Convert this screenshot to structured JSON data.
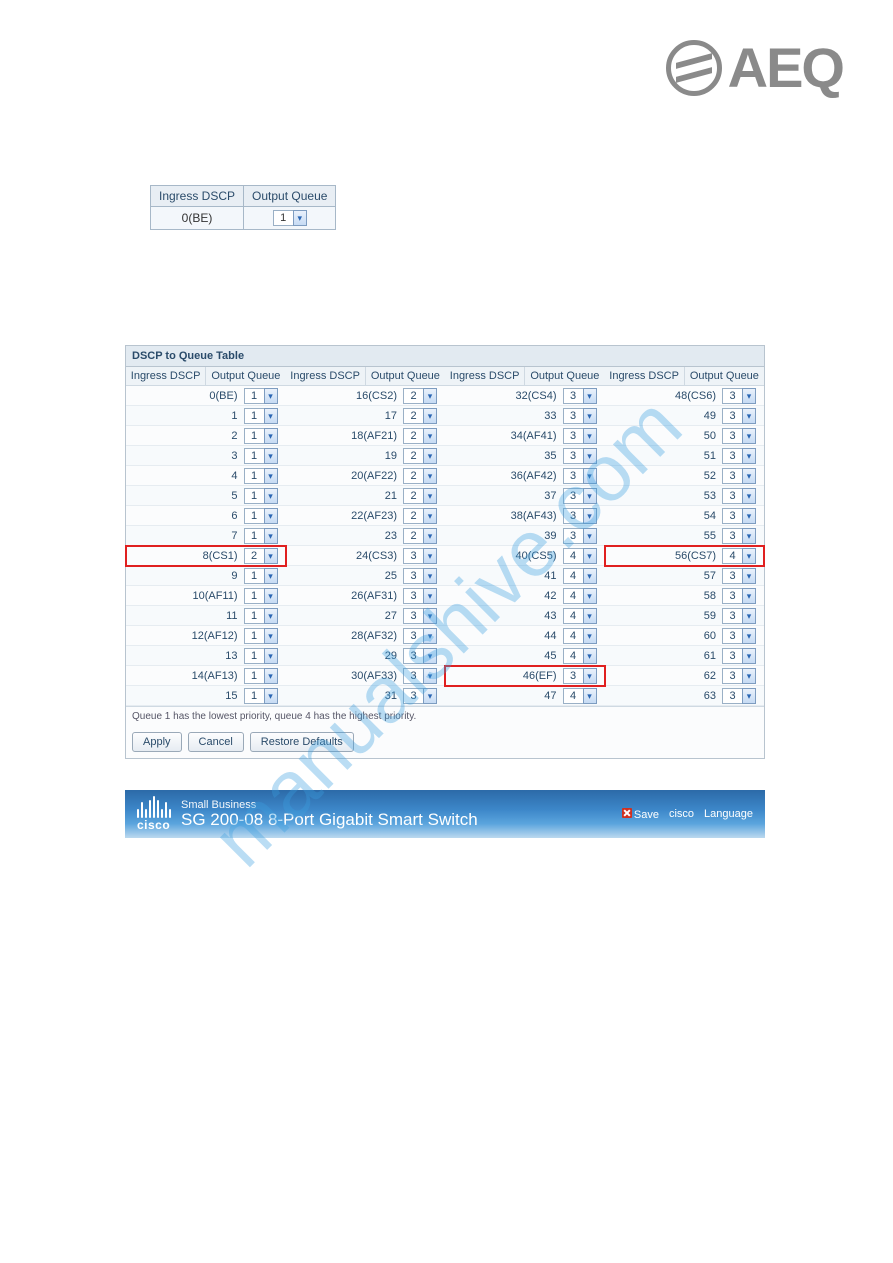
{
  "logo": {
    "text": "AEQ"
  },
  "watermark": "manualshive.com",
  "mini_table": {
    "headers": [
      "Ingress DSCP",
      "Output Queue"
    ],
    "row": {
      "dscp": "0(BE)",
      "queue": "1"
    }
  },
  "panel": {
    "title": "DSCP to Queue Table",
    "col_headers": {
      "dscp": "Ingress DSCP",
      "queue": "Output Queue"
    },
    "columns": [
      [
        {
          "d": "0(BE)",
          "q": "1",
          "hl": false
        },
        {
          "d": "1",
          "q": "1",
          "hl": false
        },
        {
          "d": "2",
          "q": "1",
          "hl": false
        },
        {
          "d": "3",
          "q": "1",
          "hl": false
        },
        {
          "d": "4",
          "q": "1",
          "hl": false
        },
        {
          "d": "5",
          "q": "1",
          "hl": false
        },
        {
          "d": "6",
          "q": "1",
          "hl": false
        },
        {
          "d": "7",
          "q": "1",
          "hl": false
        },
        {
          "d": "8(CS1)",
          "q": "2",
          "hl": true
        },
        {
          "d": "9",
          "q": "1",
          "hl": false
        },
        {
          "d": "10(AF11)",
          "q": "1",
          "hl": false
        },
        {
          "d": "11",
          "q": "1",
          "hl": false
        },
        {
          "d": "12(AF12)",
          "q": "1",
          "hl": false
        },
        {
          "d": "13",
          "q": "1",
          "hl": false
        },
        {
          "d": "14(AF13)",
          "q": "1",
          "hl": false
        },
        {
          "d": "15",
          "q": "1",
          "hl": false
        }
      ],
      [
        {
          "d": "16(CS2)",
          "q": "2",
          "hl": false
        },
        {
          "d": "17",
          "q": "2",
          "hl": false
        },
        {
          "d": "18(AF21)",
          "q": "2",
          "hl": false
        },
        {
          "d": "19",
          "q": "2",
          "hl": false
        },
        {
          "d": "20(AF22)",
          "q": "2",
          "hl": false
        },
        {
          "d": "21",
          "q": "2",
          "hl": false
        },
        {
          "d": "22(AF23)",
          "q": "2",
          "hl": false
        },
        {
          "d": "23",
          "q": "2",
          "hl": false
        },
        {
          "d": "24(CS3)",
          "q": "3",
          "hl": false
        },
        {
          "d": "25",
          "q": "3",
          "hl": false
        },
        {
          "d": "26(AF31)",
          "q": "3",
          "hl": false
        },
        {
          "d": "27",
          "q": "3",
          "hl": false
        },
        {
          "d": "28(AF32)",
          "q": "3",
          "hl": false
        },
        {
          "d": "29",
          "q": "3",
          "hl": false
        },
        {
          "d": "30(AF33)",
          "q": "3",
          "hl": false
        },
        {
          "d": "31",
          "q": "3",
          "hl": false
        }
      ],
      [
        {
          "d": "32(CS4)",
          "q": "3",
          "hl": false
        },
        {
          "d": "33",
          "q": "3",
          "hl": false
        },
        {
          "d": "34(AF41)",
          "q": "3",
          "hl": false
        },
        {
          "d": "35",
          "q": "3",
          "hl": false
        },
        {
          "d": "36(AF42)",
          "q": "3",
          "hl": false
        },
        {
          "d": "37",
          "q": "3",
          "hl": false
        },
        {
          "d": "38(AF43)",
          "q": "3",
          "hl": false
        },
        {
          "d": "39",
          "q": "3",
          "hl": false
        },
        {
          "d": "40(CS5)",
          "q": "4",
          "hl": false
        },
        {
          "d": "41",
          "q": "4",
          "hl": false
        },
        {
          "d": "42",
          "q": "4",
          "hl": false
        },
        {
          "d": "43",
          "q": "4",
          "hl": false
        },
        {
          "d": "44",
          "q": "4",
          "hl": false
        },
        {
          "d": "45",
          "q": "4",
          "hl": false
        },
        {
          "d": "46(EF)",
          "q": "3",
          "hl": true
        },
        {
          "d": "47",
          "q": "4",
          "hl": false
        }
      ],
      [
        {
          "d": "48(CS6)",
          "q": "3",
          "hl": false
        },
        {
          "d": "49",
          "q": "3",
          "hl": false
        },
        {
          "d": "50",
          "q": "3",
          "hl": false
        },
        {
          "d": "51",
          "q": "3",
          "hl": false
        },
        {
          "d": "52",
          "q": "3",
          "hl": false
        },
        {
          "d": "53",
          "q": "3",
          "hl": false
        },
        {
          "d": "54",
          "q": "3",
          "hl": false
        },
        {
          "d": "55",
          "q": "3",
          "hl": false
        },
        {
          "d": "56(CS7)",
          "q": "4",
          "hl": true
        },
        {
          "d": "57",
          "q": "3",
          "hl": false
        },
        {
          "d": "58",
          "q": "3",
          "hl": false
        },
        {
          "d": "59",
          "q": "3",
          "hl": false
        },
        {
          "d": "60",
          "q": "3",
          "hl": false
        },
        {
          "d": "61",
          "q": "3",
          "hl": false
        },
        {
          "d": "62",
          "q": "3",
          "hl": false
        },
        {
          "d": "63",
          "q": "3",
          "hl": false
        }
      ]
    ],
    "footer_note": "Queue 1 has the lowest priority, queue 4 has the highest priority.",
    "buttons": {
      "apply": "Apply",
      "cancel": "Cancel",
      "restore": "Restore Defaults"
    }
  },
  "banner": {
    "brand": "cisco",
    "small_line": "Small Business",
    "big_line": "SG 200-08 8-Port Gigabit Smart Switch",
    "right": {
      "save": "Save",
      "cisco": "cisco",
      "language": "Language"
    }
  },
  "colors": {
    "border": "#b8c4cf",
    "header_bg": "#e8eef4",
    "highlight": "#e02020",
    "banner_top": "#2c6aa8",
    "banner_bottom": "#bcd9ef",
    "logo_gray": "#8a8a8a",
    "watermark_blue": "#3b9fe0"
  }
}
